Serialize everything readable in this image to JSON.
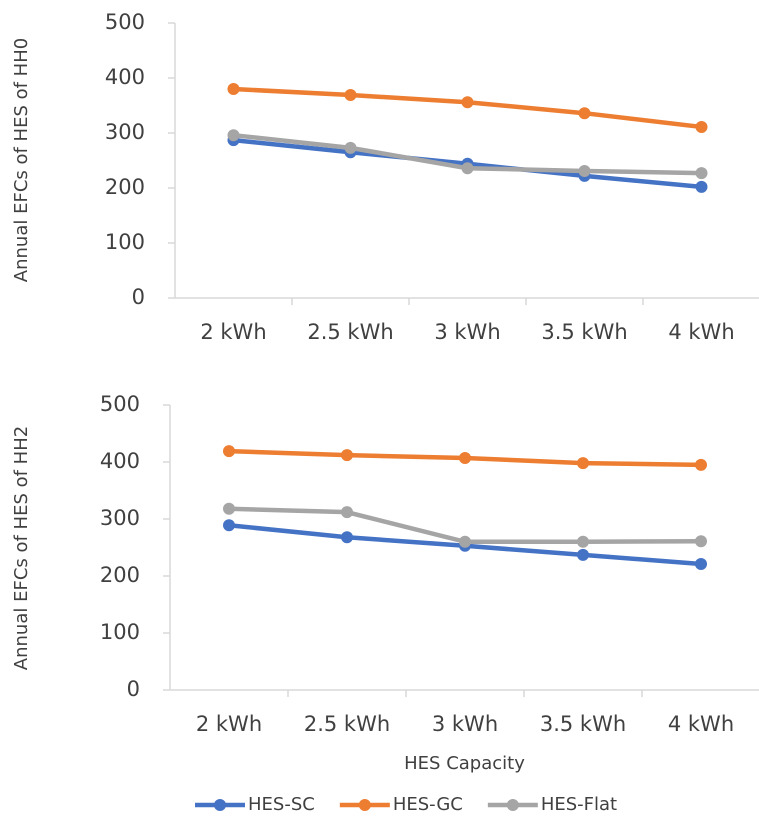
{
  "chart_data": [
    {
      "type": "line",
      "y_label": "Annual EFCs of HES of HH0",
      "categories": [
        "2 kWh",
        "2.5 kWh",
        "3 kWh",
        "3.5 kWh",
        "4 kWh"
      ],
      "series": [
        {
          "color": "#4472c4",
          "values": [
            287,
            265,
            244,
            222,
            202
          ]
        },
        {
          "color": "#ed7d31",
          "values": [
            380,
            369,
            356,
            336,
            311
          ]
        },
        {
          "color": "#a5a5a5",
          "values": [
            296,
            273,
            236,
            231,
            227
          ]
        }
      ],
      "ylim": [
        0,
        500
      ],
      "yticks": [
        0,
        100,
        200,
        300,
        400,
        500
      ]
    },
    {
      "type": "line",
      "y_label": "Annual EFCs of HES of HH2",
      "x_label": "HES Capacity",
      "categories": [
        "2 kWh",
        "2.5 kWh",
        "3 kWh",
        "3.5 kWh",
        "4 kWh"
      ],
      "series": [
        {
          "name": "HES-SC",
          "color": "#4472c4",
          "values": [
            289,
            268,
            253,
            237,
            221
          ]
        },
        {
          "name": "HES-GC",
          "color": "#ed7d31",
          "values": [
            419,
            412,
            407,
            398,
            395
          ]
        },
        {
          "name": "HES-Flat",
          "color": "#a5a5a5",
          "values": [
            318,
            312,
            260,
            260,
            261
          ]
        }
      ],
      "ylim": [
        0,
        500
      ],
      "yticks": [
        0,
        100,
        200,
        300,
        400,
        500
      ]
    }
  ]
}
